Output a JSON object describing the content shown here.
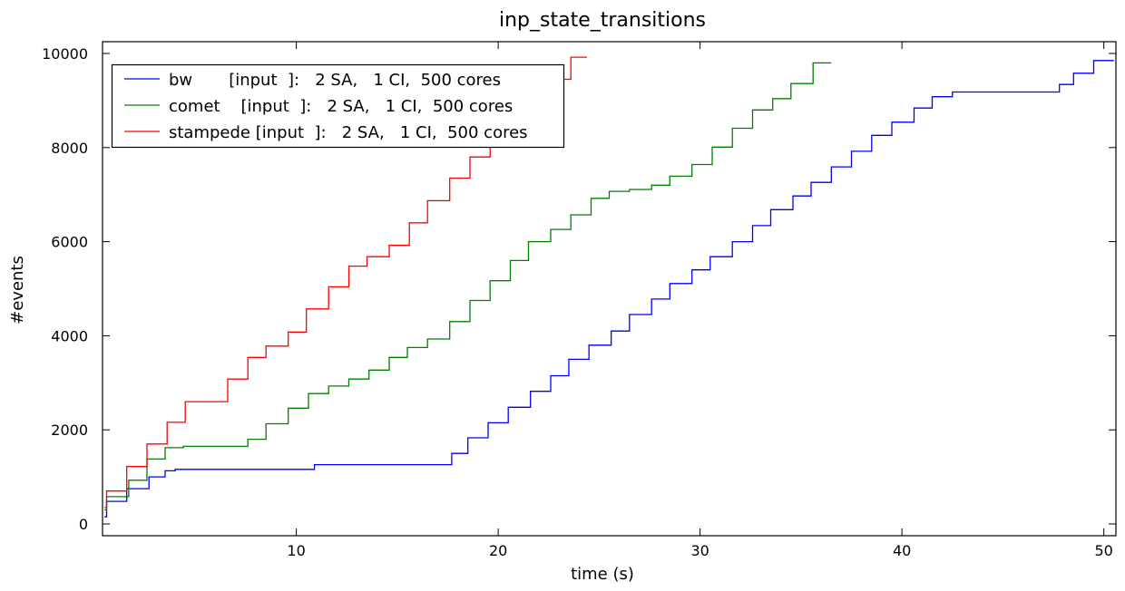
{
  "chart_data": {
    "type": "line",
    "step": true,
    "title": "inp_state_transitions",
    "xlabel": "time (s)",
    "ylabel": "#events",
    "xlim": [
      0.4,
      50.6
    ],
    "ylim": [
      -250,
      10250
    ],
    "xticks": [
      10,
      20,
      30,
      40,
      50
    ],
    "yticks": [
      0,
      2000,
      4000,
      6000,
      8000,
      10000
    ],
    "grid": false,
    "legend_position": "top-left",
    "series": [
      {
        "name": "bw       [input  ]:   2 SA,   1 CI,  500 cores",
        "color": "#0000ff",
        "x": [
          0.5,
          0.6,
          1.6,
          2.7,
          3.5,
          4.0,
          10.9,
          17.7,
          18.5,
          19.5,
          20.5,
          21.6,
          22.6,
          23.5,
          24.5,
          25.6,
          26.5,
          27.6,
          28.5,
          29.6,
          30.5,
          31.6,
          32.6,
          33.5,
          34.6,
          35.5,
          36.5,
          37.5,
          38.5,
          39.5,
          40.6,
          41.5,
          42.5,
          47.8,
          48.5,
          49.5,
          50.5
        ],
        "y": [
          150,
          480,
          750,
          1000,
          1130,
          1160,
          1260,
          1500,
          1830,
          2150,
          2480,
          2820,
          3150,
          3500,
          3800,
          4100,
          4450,
          4780,
          5110,
          5400,
          5680,
          6000,
          6340,
          6680,
          6970,
          7260,
          7590,
          7920,
          8260,
          8540,
          8840,
          9080,
          9180,
          9340,
          9580,
          9850,
          9850
        ]
      },
      {
        "name": "comet    [input  ]:   2 SA,   1 CI,  500 cores",
        "color": "#008000",
        "x": [
          0.5,
          0.6,
          1.7,
          2.6,
          3.5,
          4.4,
          7.6,
          8.5,
          9.6,
          10.6,
          11.6,
          12.6,
          13.6,
          14.6,
          15.5,
          16.5,
          17.6,
          18.6,
          19.6,
          20.6,
          21.5,
          22.6,
          23.6,
          24.6,
          25.5,
          26.5,
          27.6,
          28.5,
          29.6,
          30.6,
          31.6,
          32.6,
          33.6,
          34.5,
          35.6,
          36.5
        ],
        "y": [
          300,
          580,
          930,
          1380,
          1620,
          1650,
          1800,
          2130,
          2460,
          2770,
          2930,
          3080,
          3270,
          3540,
          3750,
          3930,
          4300,
          4750,
          5170,
          5600,
          6000,
          6260,
          6570,
          6920,
          7070,
          7110,
          7200,
          7390,
          7640,
          8010,
          8410,
          8800,
          9040,
          9360,
          9800,
          9800
        ]
      },
      {
        "name": "stampede [input  ]:   2 SA,   1 CI,  500 cores",
        "color": "#ff0000",
        "x": [
          0.5,
          0.6,
          1.6,
          2.6,
          3.6,
          4.5,
          6.6,
          7.6,
          8.5,
          9.6,
          10.5,
          11.6,
          12.6,
          13.5,
          14.6,
          15.6,
          16.5,
          17.6,
          18.6,
          19.6,
          20.6,
          21.6,
          22.6,
          23.6,
          24.4
        ],
        "y": [
          350,
          700,
          1220,
          1700,
          2160,
          2600,
          3080,
          3540,
          3780,
          4080,
          4570,
          5040,
          5480,
          5680,
          5920,
          6400,
          6870,
          7350,
          7800,
          8270,
          8700,
          9100,
          9450,
          9920,
          9920
        ]
      }
    ]
  }
}
